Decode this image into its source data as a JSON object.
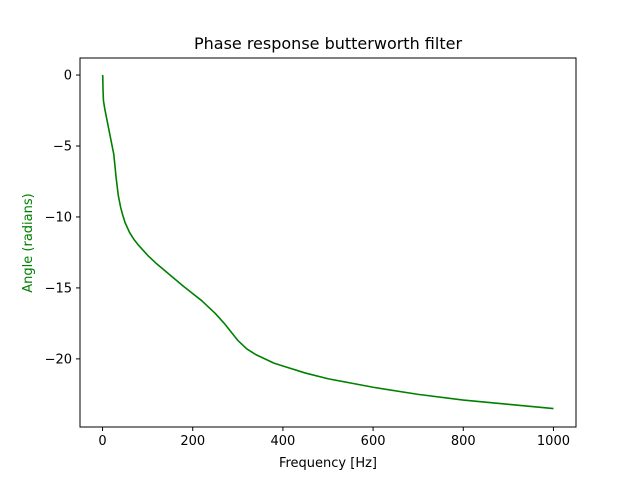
{
  "chart_data": {
    "type": "line",
    "title": "Phase response butterworth filter",
    "xlabel": "Frequency [Hz]",
    "ylabel": "Angle (radians)",
    "ylabel_color": "#008000",
    "xlim": [
      -50,
      1050
    ],
    "ylim": [
      -24.8,
      1.2
    ],
    "xticks": [
      0,
      200,
      400,
      600,
      800,
      1000
    ],
    "xtick_labels": [
      "0",
      "200",
      "400",
      "600",
      "800",
      "1000"
    ],
    "yticks": [
      0,
      -5,
      -10,
      -15,
      -20
    ],
    "ytick_labels": [
      "0",
      "−5",
      "−10",
      "−15",
      "−20"
    ],
    "grid": false,
    "series": [
      {
        "color": "#008000",
        "x": [
          0,
          0.5,
          1,
          2,
          5,
          10,
          15,
          20,
          25,
          30,
          35,
          40,
          45,
          50,
          60,
          70,
          80,
          100,
          120,
          150,
          180,
          200,
          220,
          250,
          270,
          290,
          300,
          320,
          340,
          360,
          380,
          400,
          450,
          500,
          550,
          600,
          700,
          800,
          900,
          1000
        ],
        "y": [
          0,
          -0.1,
          -1.0,
          -1.8,
          -2.4,
          -3.2,
          -4.0,
          -4.8,
          -5.6,
          -7.2,
          -8.5,
          -9.3,
          -9.9,
          -10.4,
          -11.1,
          -11.6,
          -12.0,
          -12.7,
          -13.3,
          -14.1,
          -14.9,
          -15.4,
          -15.9,
          -16.8,
          -17.5,
          -18.3,
          -18.7,
          -19.3,
          -19.7,
          -20.0,
          -20.3,
          -20.5,
          -21.0,
          -21.4,
          -21.7,
          -22.0,
          -22.5,
          -22.9,
          -23.2,
          -23.5
        ]
      }
    ]
  }
}
